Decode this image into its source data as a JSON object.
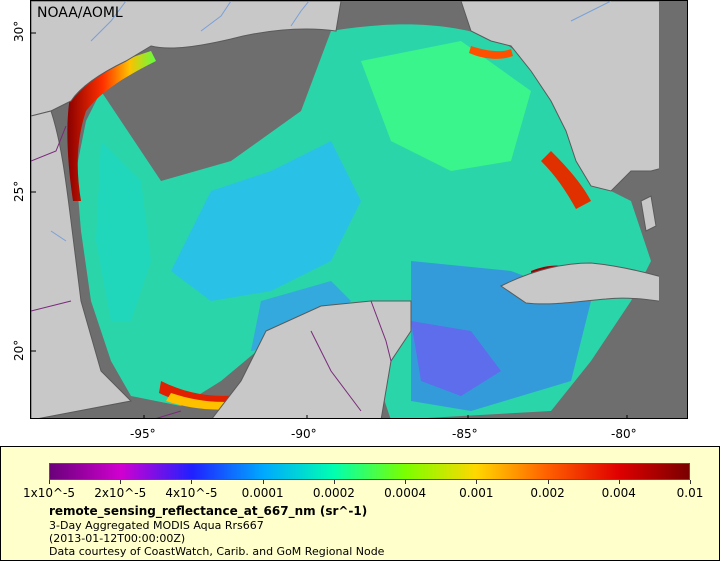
{
  "map": {
    "watermark": "NOAA/AOML",
    "latitude_labels": [
      "30°",
      "25°",
      "20°"
    ],
    "longitude_labels": [
      "-95°",
      "-90°",
      "-85°",
      "-80°"
    ],
    "colors": {
      "ocean_nodata": "#6e6e6e",
      "land": "#c8c8c8",
      "coastline": "#5a5a5a",
      "borders": "#7a2a7a",
      "rivers": "#7aa0d8"
    }
  },
  "legend": {
    "colorbar_labels": [
      "1x10^-5",
      "2x10^-5",
      "4x10^-5",
      "0.0001",
      "0.0002",
      "0.0004",
      "0.001",
      "0.002",
      "0.004",
      "0.01"
    ],
    "colorbar_colors": [
      "#6a007a",
      "#d000d0",
      "#2020ff",
      "#00a8ff",
      "#00ffb0",
      "#7aff00",
      "#ffd800",
      "#ff6000",
      "#e00000",
      "#7a0000"
    ],
    "variable_title": "remote_sensing_reflectance_at_667_nm (sr^-1)",
    "product_line": "3-Day Aggregated MODIS Aqua Rrs667",
    "time_line": "(2013-01-12T00:00:00Z)",
    "credit_line": "Data courtesy of CoastWatch, Carib. and GoM Regional Node"
  }
}
